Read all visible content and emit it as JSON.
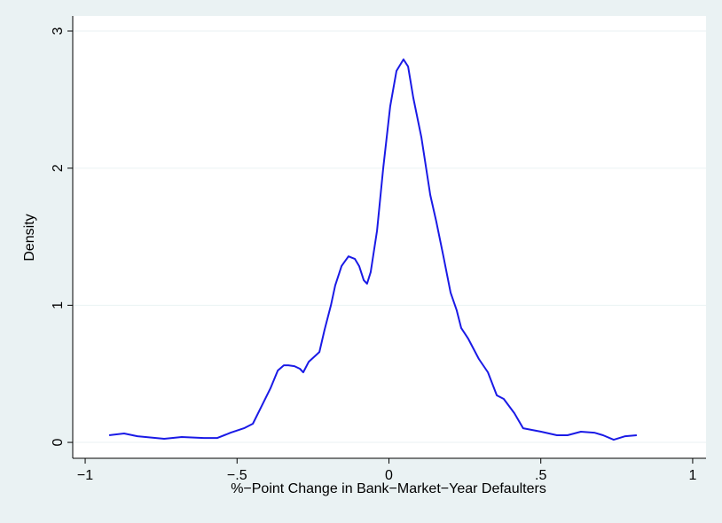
{
  "chart_data": {
    "type": "line",
    "x_label": "%−Point Change in Bank−Market−Year Defaulters",
    "y_label": "Density",
    "x": [
      -0.921,
      -0.872,
      -0.828,
      -0.74,
      -0.682,
      -0.609,
      -0.565,
      -0.521,
      -0.477,
      -0.448,
      -0.419,
      -0.39,
      -0.366,
      -0.346,
      -0.331,
      -0.311,
      -0.293,
      -0.282,
      -0.264,
      -0.229,
      -0.212,
      -0.191,
      -0.177,
      -0.156,
      -0.133,
      -0.112,
      -0.098,
      -0.083,
      -0.072,
      -0.06,
      -0.039,
      -0.019,
      0.004,
      0.025,
      0.048,
      0.063,
      0.08,
      0.107,
      0.136,
      0.156,
      0.18,
      0.203,
      0.223,
      0.238,
      0.261,
      0.296,
      0.326,
      0.355,
      0.378,
      0.413,
      0.442,
      0.501,
      0.553,
      0.588,
      0.632,
      0.676,
      0.705,
      0.74,
      0.778,
      0.816
    ],
    "values": [
      0.052,
      0.065,
      0.045,
      0.026,
      0.039,
      0.032,
      0.032,
      0.071,
      0.103,
      0.136,
      0.265,
      0.394,
      0.524,
      0.562,
      0.562,
      0.556,
      0.537,
      0.511,
      0.588,
      0.659,
      0.821,
      1.0,
      1.144,
      1.286,
      1.357,
      1.338,
      1.286,
      1.183,
      1.157,
      1.241,
      1.545,
      1.997,
      2.45,
      2.709,
      2.793,
      2.741,
      2.515,
      2.224,
      1.804,
      1.61,
      1.351,
      1.092,
      0.963,
      0.834,
      0.756,
      0.608,
      0.511,
      0.343,
      0.317,
      0.213,
      0.103,
      0.078,
      0.052,
      0.052,
      0.078,
      0.071,
      0.052,
      0.019,
      0.045,
      0.052
    ],
    "color": "#1a1ae6",
    "xlim": [
      -1.041,
      1.044
    ],
    "ylim": [
      -0.116,
      3.11
    ],
    "xticks": [
      {
        "value": -1,
        "label": "−1"
      },
      {
        "value": -0.5,
        "label": "−.5"
      },
      0,
      {
        "value": 0.5,
        "label": ".5"
      },
      1
    ],
    "yticks": [
      0,
      1,
      2,
      3
    ],
    "grid": true
  }
}
